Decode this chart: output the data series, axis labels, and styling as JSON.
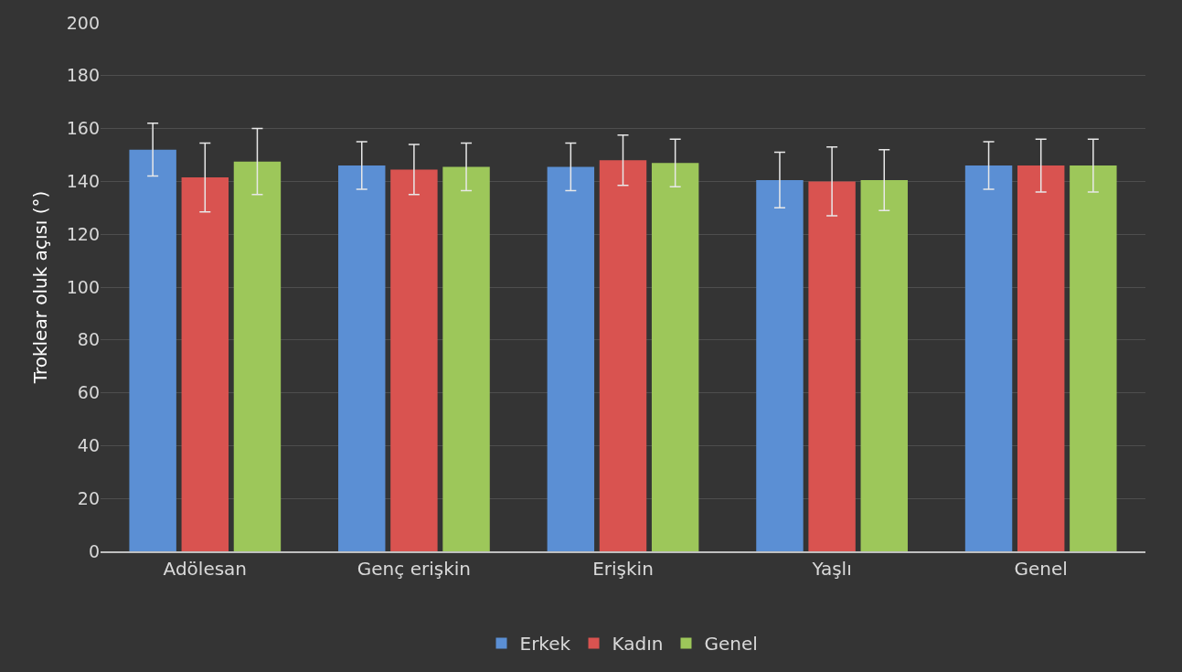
{
  "chart_data": {
    "type": "bar",
    "ylabel": "Troklear oluk açısı (°)",
    "categories": [
      "Adölesan",
      "Genç erişkin",
      "Erişkin",
      "Yaşlı",
      "Genel"
    ],
    "series": [
      {
        "name": "Erkek",
        "color": "#5b8fd4",
        "values": [
          152,
          146,
          145.5,
          140.5,
          146
        ],
        "errors": [
          10,
          9,
          9,
          10.5,
          9
        ]
      },
      {
        "name": "Kadın",
        "color": "#d95350",
        "values": [
          141.5,
          144.5,
          148,
          140,
          146
        ],
        "errors": [
          13,
          9.5,
          9.5,
          13,
          10
        ]
      },
      {
        "name": "Genel",
        "color": "#9dc75a",
        "values": [
          147.5,
          145.5,
          147,
          140.5,
          146
        ],
        "errors": [
          12.5,
          9,
          9,
          11.5,
          10
        ]
      }
    ],
    "ylim": [
      0,
      200
    ],
    "yticks": [
      0,
      20,
      40,
      60,
      80,
      100,
      120,
      140,
      160,
      180,
      200
    ],
    "grid": "y",
    "legend": "bottom"
  }
}
